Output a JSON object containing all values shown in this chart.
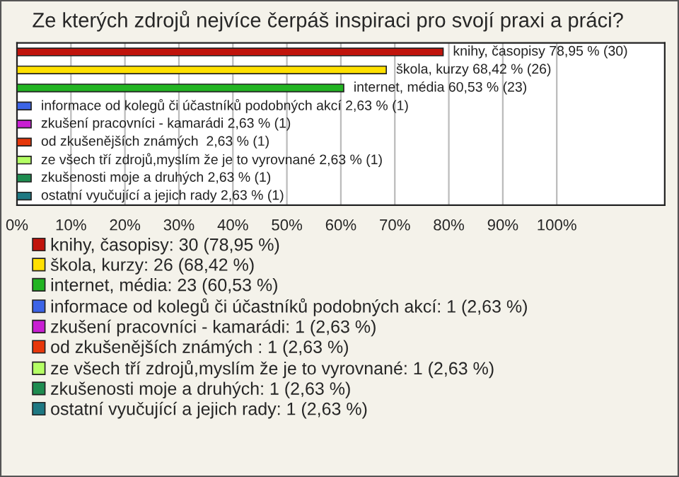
{
  "chart_data": {
    "type": "bar",
    "orientation": "horizontal",
    "title": "Ze kterých zdrojů nejvíce čerpáš inspiraci pro svojí praxi a práci?",
    "categories": [
      null,
      null,
      null,
      null,
      null,
      null,
      null,
      null,
      null
    ],
    "series": [
      {
        "name": "knihy, časopisy: 30 (78,95 %)",
        "color": "#c0140c",
        "values": [
          78.95,
          null,
          null,
          null,
          null,
          null,
          null,
          null,
          null
        ],
        "value_labels": [
          "knihy, časopisy 78,95 % (30)",
          null,
          null,
          null,
          null,
          null,
          null,
          null,
          null
        ]
      },
      {
        "name": "škola, kurzy: 26 (68,42 %)",
        "color": "#ffe000",
        "values": [
          null,
          68.42,
          null,
          null,
          null,
          null,
          null,
          null,
          null
        ],
        "value_labels": [
          null,
          "škola, kurzy 68,42 % (26)",
          null,
          null,
          null,
          null,
          null,
          null,
          null
        ]
      },
      {
        "name": "internet, média: 23 (60,53 %)",
        "color": "#22b422",
        "values": [
          null,
          null,
          60.53,
          null,
          null,
          null,
          null,
          null,
          null
        ],
        "value_labels": [
          null,
          null,
          "internet, média 60,53 % (23)",
          null,
          null,
          null,
          null,
          null,
          null
        ]
      },
      {
        "name": "informace od kolegů či účastníků podobných akcí: 1 (2,63 %)",
        "color": "#3c64e6",
        "values": [
          null,
          null,
          null,
          2.63,
          null,
          null,
          null,
          null,
          null
        ],
        "value_labels": [
          null,
          null,
          null,
          "informace od kolegů či účastníků podobných akcí 2,63 % (1)",
          null,
          null,
          null,
          null,
          null
        ]
      },
      {
        "name": "zkušení pracovníci - kamarádi: 1 (2,63 %)",
        "color": "#c81ed2",
        "values": [
          null,
          null,
          null,
          null,
          2.63,
          null,
          null,
          null,
          null
        ],
        "value_labels": [
          null,
          null,
          null,
          null,
          "zkušení pracovníci - kamarádi 2,63 % (1)",
          null,
          null,
          null,
          null
        ]
      },
      {
        "name": "od zkušenějších známých : 1 (2,63 %)",
        "color": "#e6370a",
        "values": [
          null,
          null,
          null,
          null,
          null,
          2.63,
          null,
          null,
          null
        ],
        "value_labels": [
          null,
          null,
          null,
          null,
          null,
          "od zkušenějších známých  2,63 % (1)",
          null,
          null,
          null
        ]
      },
      {
        "name": "ze všech tří zdrojů,myslím že je to vyrovnané: 1 (2,63 %)",
        "color": "#b4ff64",
        "values": [
          null,
          null,
          null,
          null,
          null,
          null,
          2.63,
          null,
          null
        ],
        "value_labels": [
          null,
          null,
          null,
          null,
          null,
          null,
          "ze všech tří zdrojů,myslím že je to vyrovnané 2,63 % (1)",
          null,
          null
        ]
      },
      {
        "name": "zkušenosti moje a druhých: 1 (2,63 %)",
        "color": "#1e8c50",
        "values": [
          null,
          null,
          null,
          null,
          null,
          null,
          null,
          2.63,
          null
        ],
        "value_labels": [
          null,
          null,
          null,
          null,
          null,
          null,
          null,
          "zkušenosti moje a druhých 2,63 % (1)",
          null
        ]
      },
      {
        "name": "ostatní vyučující a jejich rady: 1 (2,63 %)",
        "color": "#1e7882",
        "values": [
          null,
          null,
          null,
          null,
          null,
          null,
          null,
          null,
          2.63
        ],
        "value_labels": [
          null,
          null,
          null,
          null,
          null,
          null,
          null,
          null,
          "ostatní vyučující a jejich rady 2,63 % (1)"
        ]
      }
    ],
    "xlim": [
      0,
      120
    ],
    "xticks": [
      {
        "value": 0,
        "label": "0%"
      },
      {
        "value": 10,
        "label": "10%"
      },
      {
        "value": 20,
        "label": "20%"
      },
      {
        "value": 30,
        "label": "30%"
      },
      {
        "value": 40,
        "label": "40%"
      },
      {
        "value": 50,
        "label": "50%"
      },
      {
        "value": 60,
        "label": "60%"
      },
      {
        "value": 70,
        "label": "70%"
      },
      {
        "value": 80,
        "label": "80%"
      },
      {
        "value": 90,
        "label": "90%"
      },
      {
        "value": 100,
        "label": "100%"
      }
    ],
    "grid": "x",
    "legend": "bottom"
  }
}
